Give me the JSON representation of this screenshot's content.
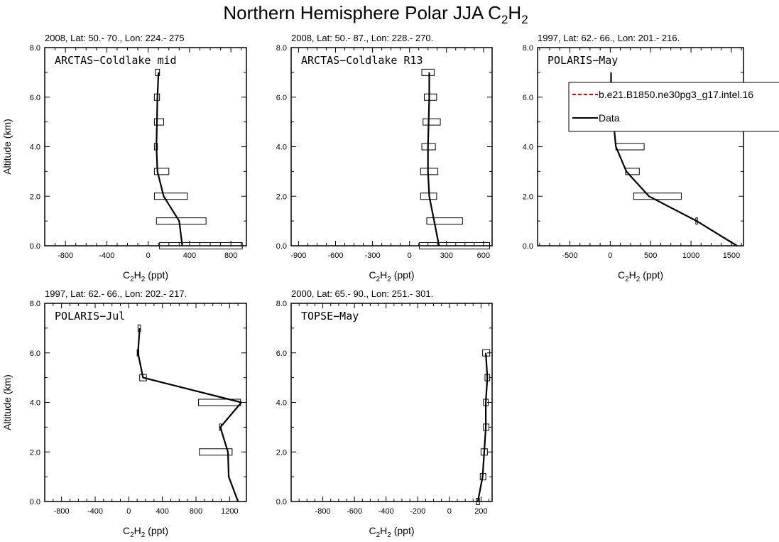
{
  "figure": {
    "title_prefix": "Northern Hemisphere Polar JJA C",
    "title_sub1": "2",
    "title_mid": "H",
    "title_sub2": "2"
  },
  "legend": {
    "model_label": "b.e21.B1850.ne30pg3_g17.intel.16",
    "data_label": "Data",
    "model_color": "#dd0000",
    "data_color": "#000000"
  },
  "chart_data": [
    {
      "type": "line",
      "subtitle": "2008, Lat:  50.- 70., Lon: 224.- 275",
      "label": "ARCTAS−Coldlake mid",
      "ylabel": "Altitude (km)",
      "xlim": [
        -1000,
        950
      ],
      "ylim": [
        0,
        8
      ],
      "xticks": [
        -800,
        -400,
        0,
        400,
        800
      ],
      "x": [
        330,
        300,
        150,
        90,
        80,
        90,
        100
      ],
      "y": [
        0,
        1,
        2,
        3,
        4,
        6,
        7
      ],
      "bars": [
        {
          "y": 0,
          "x0": 110,
          "x1": 910
        },
        {
          "y": 1,
          "x0": 80,
          "x1": 560
        },
        {
          "y": 2,
          "x0": 60,
          "x1": 380
        },
        {
          "y": 3,
          "x0": 60,
          "x1": 200
        },
        {
          "y": 4,
          "x0": 60,
          "x1": 90
        },
        {
          "y": 5,
          "x0": 60,
          "x1": 150
        },
        {
          "y": 6,
          "x0": 60,
          "x1": 110
        },
        {
          "y": 7,
          "x0": 70,
          "x1": 110
        }
      ]
    },
    {
      "type": "line",
      "subtitle": "2008, Lat:  50.- 87., Lon: 228.- 270.",
      "label": "ARCTAS−Coldlake R13",
      "ylabel": "",
      "xlim": [
        -960,
        670
      ],
      "ylim": [
        0,
        8
      ],
      "xticks": [
        -900,
        -600,
        -300,
        0,
        300,
        600
      ],
      "x": [
        240,
        200,
        160,
        150,
        150,
        160,
        160
      ],
      "y": [
        0,
        1,
        2,
        3,
        4,
        6,
        7
      ],
      "bars": [
        {
          "y": 0,
          "x0": 80,
          "x1": 650
        },
        {
          "y": 1,
          "x0": 140,
          "x1": 430
        },
        {
          "y": 2,
          "x0": 90,
          "x1": 220
        },
        {
          "y": 3,
          "x0": 90,
          "x1": 230
        },
        {
          "y": 4,
          "x0": 100,
          "x1": 210
        },
        {
          "y": 5,
          "x0": 110,
          "x1": 250
        },
        {
          "y": 6,
          "x0": 120,
          "x1": 220
        },
        {
          "y": 7,
          "x0": 100,
          "x1": 200
        }
      ]
    },
    {
      "type": "line",
      "subtitle": "1997, Lat: 62.- 66., Lon: 201.- 216.",
      "label": "POLARIS−May",
      "ylabel": "",
      "xlim": [
        -900,
        1650
      ],
      "ylim": [
        0,
        8
      ],
      "xticks": [
        -500,
        0,
        500,
        1000,
        1500
      ],
      "x": [
        1570,
        1070,
        480,
        200,
        70,
        10,
        10
      ],
      "y": [
        0,
        1,
        2,
        3,
        4,
        6,
        7
      ],
      "bars": [
        {
          "y": 1,
          "x0": 1060,
          "x1": 1080
        },
        {
          "y": 2,
          "x0": 290,
          "x1": 880
        },
        {
          "y": 3,
          "x0": 190,
          "x1": 360
        },
        {
          "y": 4,
          "x0": 70,
          "x1": 420
        }
      ]
    },
    {
      "type": "line",
      "subtitle": "1997, Lat: 62.- 66., Lon: 202.- 217.",
      "label": "POLARIS−Jul",
      "ylabel": "Altitude (km)",
      "xlim": [
        -1000,
        1400
      ],
      "ylim": [
        0,
        8
      ],
      "xticks": [
        -800,
        -400,
        0,
        400,
        800,
        1200
      ],
      "x": [
        1300,
        1190,
        1180,
        1090,
        1340,
        170,
        110,
        130
      ],
      "y": [
        0,
        1,
        2,
        3,
        4,
        5,
        6,
        7
      ],
      "bars": [
        {
          "y": 2,
          "x0": 840,
          "x1": 1230
        },
        {
          "y": 3,
          "x0": 1080,
          "x1": 1100
        },
        {
          "y": 4,
          "x0": 830,
          "x1": 1330
        },
        {
          "y": 5,
          "x0": 130,
          "x1": 210
        },
        {
          "y": 6,
          "x0": 100,
          "x1": 120
        },
        {
          "y": 7,
          "x0": 110,
          "x1": 140
        }
      ]
    },
    {
      "type": "line",
      "subtitle": "2000, Lat: 65.- 90., Lon: 251.- 301.",
      "label": "TOPSE−May",
      "ylabel": "",
      "xlim": [
        -1000,
        270
      ],
      "ylim": [
        0,
        8
      ],
      "xticks": [
        -800,
        -600,
        -400,
        -200,
        0,
        200
      ],
      "x": [
        180,
        210,
        220,
        230,
        230,
        240,
        230
      ],
      "y": [
        0,
        1,
        2,
        3,
        4,
        5,
        6
      ],
      "bars": [
        {
          "y": 0,
          "x0": 170,
          "x1": 190
        },
        {
          "y": 1,
          "x0": 195,
          "x1": 230
        },
        {
          "y": 2,
          "x0": 200,
          "x1": 240
        },
        {
          "y": 3,
          "x0": 215,
          "x1": 250
        },
        {
          "y": 4,
          "x0": 215,
          "x1": 245
        },
        {
          "y": 5,
          "x0": 225,
          "x1": 255
        },
        {
          "y": 6,
          "x0": 210,
          "x1": 255
        }
      ]
    }
  ],
  "axis_text": {
    "xlabel_main": "C",
    "xlabel_sub1": "2",
    "xlabel_mid": "H",
    "xlabel_sub2": "2",
    "xlabel_unit": " (ppt)",
    "yticks": [
      "0.0",
      "2.0",
      "4.0",
      "6.0",
      "8.0"
    ]
  }
}
